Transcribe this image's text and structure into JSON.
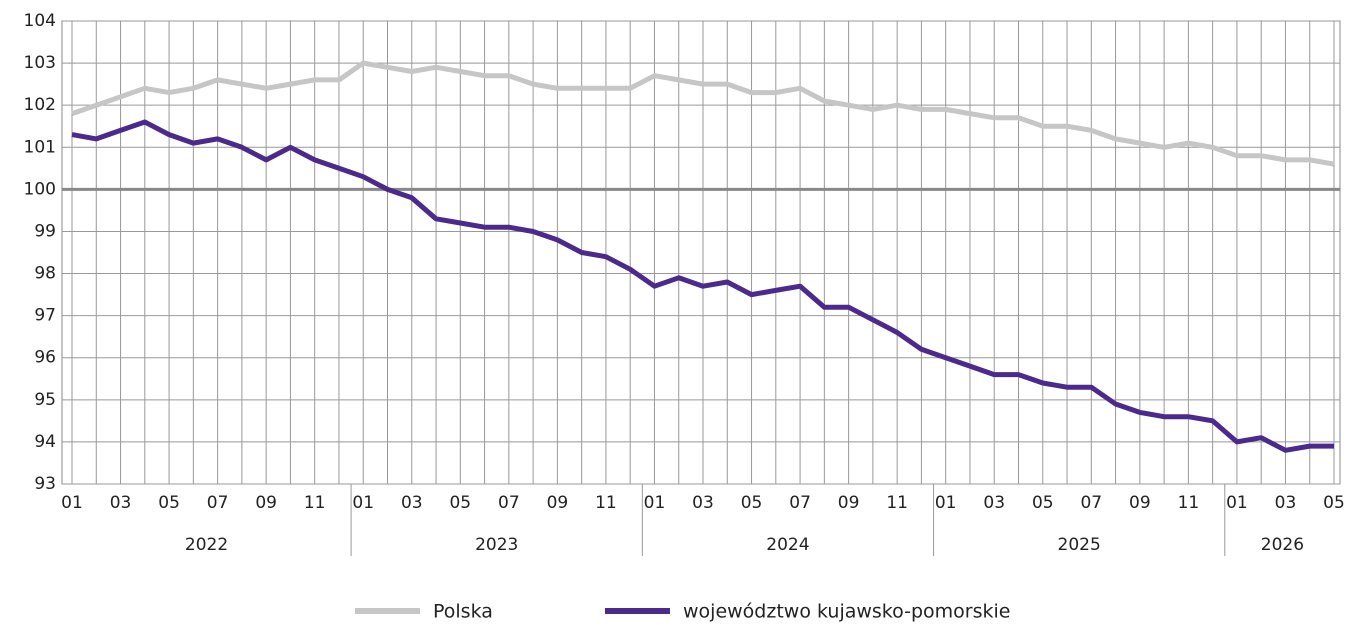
{
  "chart_data": {
    "type": "line",
    "categories": [
      "01",
      null,
      "03",
      null,
      "05",
      null,
      "07",
      null,
      "09",
      null,
      "11",
      null,
      "01",
      null,
      "03",
      null,
      "05",
      null,
      "07",
      null,
      "09",
      null,
      "11",
      null,
      "01",
      null,
      "03",
      null,
      "05",
      null,
      "07",
      null,
      "09",
      null,
      "11",
      null,
      "01",
      null,
      "03",
      null,
      "05",
      null,
      "07",
      null,
      "09",
      null,
      "11",
      null,
      "01",
      null,
      "03",
      null,
      "05"
    ],
    "year_groups": [
      "2022",
      "2023",
      "2024",
      "2025",
      "2026"
    ],
    "series": [
      {
        "name": "Polska",
        "color": "#c6c6c6",
        "values": [
          101.8,
          102.0,
          102.2,
          102.4,
          102.3,
          102.4,
          102.6,
          102.5,
          102.4,
          102.5,
          102.6,
          102.6,
          103.0,
          102.9,
          102.8,
          102.9,
          102.8,
          102.7,
          102.7,
          102.5,
          102.4,
          102.4,
          102.4,
          102.4,
          102.7,
          102.6,
          102.5,
          102.5,
          102.3,
          102.3,
          102.4,
          102.1,
          102.0,
          101.9,
          102.0,
          101.9,
          101.9,
          101.8,
          101.7,
          101.7,
          101.5,
          101.5,
          101.4,
          101.2,
          101.1,
          101.0,
          101.1,
          101.0,
          100.8,
          100.8,
          100.7,
          100.7,
          100.6
        ]
      },
      {
        "name": "województwo kujawsko-pomorskie",
        "color": "#4b2a8c",
        "values": [
          101.3,
          101.2,
          101.4,
          101.6,
          101.3,
          101.1,
          101.2,
          101.0,
          100.7,
          101.0,
          100.7,
          100.5,
          100.3,
          100.0,
          99.8,
          99.3,
          99.2,
          99.1,
          99.1,
          99.0,
          98.8,
          98.5,
          98.4,
          98.1,
          97.7,
          97.9,
          97.7,
          97.8,
          97.5,
          97.6,
          97.7,
          97.2,
          97.2,
          96.9,
          96.6,
          96.2,
          96.0,
          95.8,
          95.6,
          95.6,
          95.4,
          95.3,
          95.3,
          94.9,
          94.7,
          94.6,
          94.6,
          94.5,
          94.0,
          94.1,
          93.8,
          93.9,
          93.9
        ]
      }
    ],
    "ylim": [
      93,
      104
    ],
    "yticks": [
      93,
      94,
      95,
      96,
      97,
      98,
      99,
      100,
      101,
      102,
      103,
      104
    ],
    "reference_line": 100,
    "grid": true,
    "legend": "bottom"
  }
}
